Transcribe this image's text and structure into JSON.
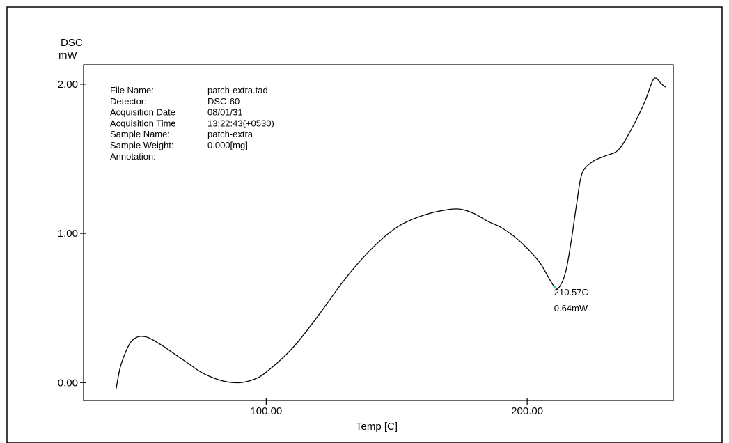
{
  "chart_data": {
    "type": "line",
    "title": "",
    "xlabel": "Temp [C]",
    "ylabel": "DSC",
    "yunit": "mW",
    "xlim": [
      30,
      256
    ],
    "ylim": [
      -0.12,
      2.13
    ],
    "xticks": [
      {
        "value": 100,
        "label": "100.00"
      },
      {
        "value": 200,
        "label": "200.00"
      }
    ],
    "yticks": [
      {
        "value": 0,
        "label": "0.00"
      },
      {
        "value": 1,
        "label": "1.00"
      },
      {
        "value": 2,
        "label": "2.00"
      }
    ],
    "grid": false,
    "series": [
      {
        "name": "",
        "color": "#000000",
        "x": [
          42.5,
          44,
          46,
          48,
          50,
          52,
          55,
          60,
          65,
          70,
          75,
          80,
          85,
          90,
          95,
          100,
          110,
          120,
          130,
          140,
          150,
          160,
          170,
          175,
          180,
          185,
          190,
          195,
          200,
          205,
          210.57,
          213,
          215,
          217,
          219,
          221,
          225,
          230,
          235,
          240,
          245,
          248,
          249.5,
          251,
          253
        ],
        "y": [
          -0.04,
          0.1,
          0.2,
          0.27,
          0.3,
          0.31,
          0.3,
          0.25,
          0.19,
          0.13,
          0.07,
          0.03,
          0.005,
          0.0,
          0.02,
          0.07,
          0.23,
          0.45,
          0.69,
          0.89,
          1.04,
          1.12,
          1.16,
          1.16,
          1.13,
          1.08,
          1.04,
          0.98,
          0.9,
          0.8,
          0.64,
          0.66,
          0.76,
          0.96,
          1.2,
          1.4,
          1.48,
          1.52,
          1.56,
          1.7,
          1.88,
          2.02,
          2.04,
          2.01,
          1.98
        ]
      }
    ],
    "annotations": [
      {
        "x": 210.57,
        "y": 0.64,
        "lines": [
          "210.57C",
          "0.64mW"
        ],
        "marker_color": "#34c9b8"
      }
    ],
    "metadata": [
      {
        "key": "File Name:",
        "value": "patch-extra.tad"
      },
      {
        "key": "Detector:",
        "value": "DSC-60"
      },
      {
        "key": "Acquisition Date",
        "value": "08/01/31"
      },
      {
        "key": "Acquisition Time",
        "value": "13:22:43(+0530)"
      },
      {
        "key": "Sample Name:",
        "value": "patch-extra"
      },
      {
        "key": "Sample Weight:",
        "value": "0.000[mg]"
      },
      {
        "key": "Annotation:",
        "value": ""
      }
    ]
  }
}
